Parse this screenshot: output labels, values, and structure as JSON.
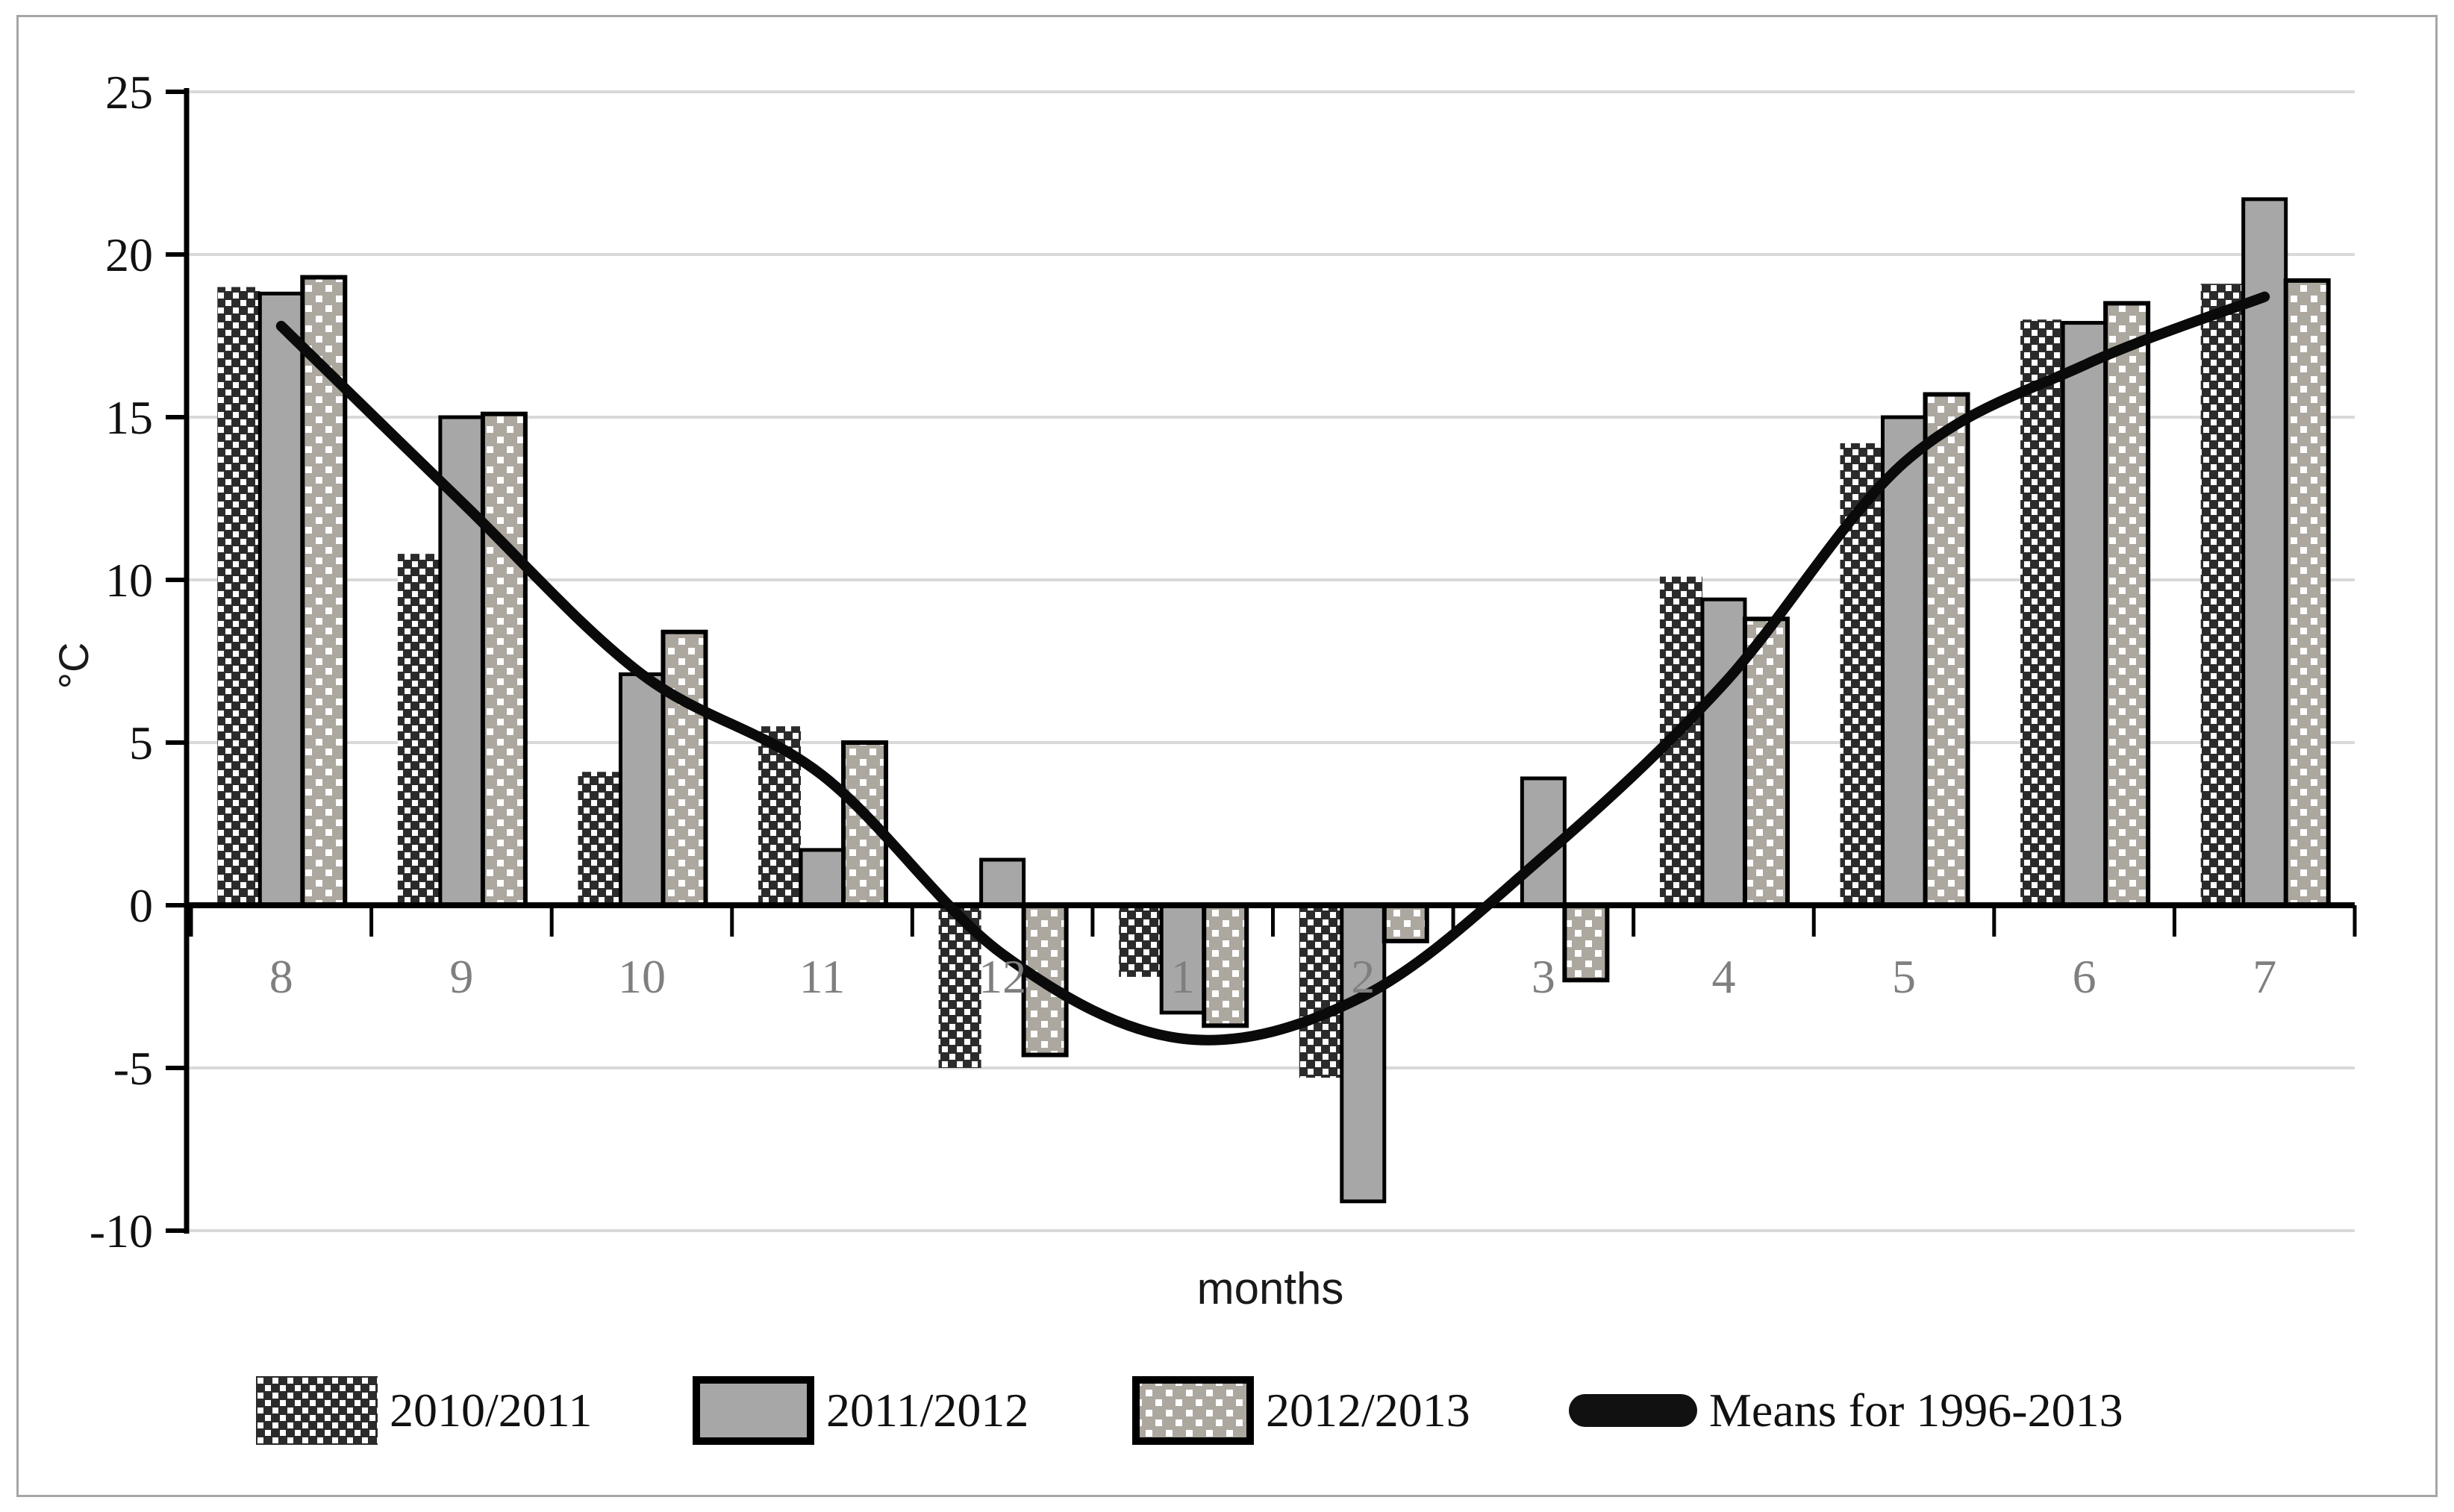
{
  "window": {
    "background": "#ffffff",
    "frame_border_color": "#a6a6a6"
  },
  "chart_data": {
    "type": "bar",
    "title": "",
    "xlabel": "months",
    "ylabel": "°C",
    "ylim": [
      -10,
      25
    ],
    "yticks": [
      25,
      20,
      15,
      10,
      5,
      0,
      -5,
      -10
    ],
    "categories": [
      "8",
      "9",
      "10",
      "11",
      "12",
      "1",
      "2",
      "3",
      "4",
      "5",
      "6",
      "7"
    ],
    "series": [
      {
        "name": "2010/2011",
        "pattern": "dark-checker",
        "values": [
          19.0,
          10.8,
          4.1,
          5.5,
          -5.0,
          -2.2,
          -5.3,
          0,
          10.1,
          14.2,
          18.0,
          19.1
        ]
      },
      {
        "name": "2011/2012",
        "pattern": "solid-gray",
        "values": [
          18.8,
          15.0,
          7.1,
          1.7,
          1.4,
          -3.3,
          -9.1,
          3.9,
          9.4,
          15.0,
          17.9,
          21.7
        ]
      },
      {
        "name": "2012/2013",
        "pattern": "light-dotted",
        "values": [
          19.3,
          15.1,
          8.4,
          5.0,
          -4.6,
          -3.7,
          -1.1,
          -2.3,
          8.8,
          15.7,
          18.5,
          19.2
        ]
      }
    ],
    "line_series": {
      "name": "Means for 1996-2013",
      "values": [
        17.8,
        12.4,
        7.1,
        4.0,
        -1.5,
        -4.1,
        -2.8,
        1.5,
        6.8,
        13.6,
        16.6,
        18.7
      ]
    },
    "legend_position": "bottom",
    "grid": "horizontal",
    "colors": {
      "bar_solid": "#a7a7a7",
      "bar_checker_bg": "#2b2b2b",
      "bar_dotted_bg": "#aca79f",
      "axis": "#000000",
      "gridline": "#d9d9d9",
      "x_tick_label": "#7f7f7f",
      "y_tick_label": "#111111",
      "mean_line": "#0a0a0a"
    }
  }
}
